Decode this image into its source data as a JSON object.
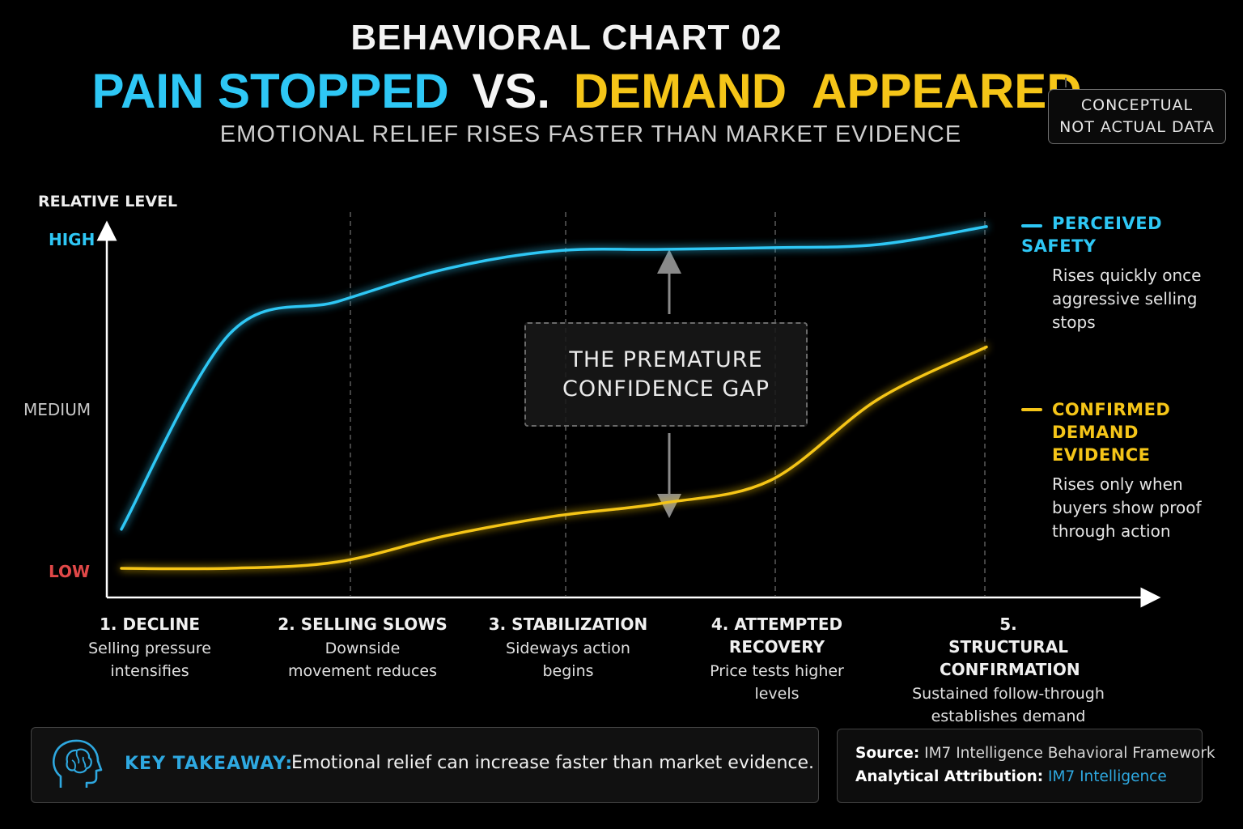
{
  "header": {
    "title": "BEHAVIORAL CHART 02",
    "headline_part1": "PAIN STOPPED",
    "headline_part2": "VS.",
    "headline_part3": "DEMAND  APPEARED",
    "subtitle": "EMOTIONAL RELIEF RISES FASTER THAN MARKET EVIDENCE",
    "badge_line1": "CONCEPTUAL",
    "badge_line2": "NOT ACTUAL DATA"
  },
  "colors": {
    "background": "#000000",
    "safety": "#2ec7f5",
    "demand": "#f5c518",
    "low": "#e04848",
    "medium": "#c8c8c8",
    "high": "#2ec7f5"
  },
  "chart_data": {
    "type": "line",
    "title": "BEHAVIORAL CHART 02",
    "ylabel": "RELATIVE LEVEL",
    "y_levels": [
      "LOW",
      "MEDIUM",
      "HIGH"
    ],
    "ylim": [
      0,
      1
    ],
    "x": [
      1,
      1.5,
      2,
      2.5,
      3,
      3.5,
      4,
      4.5,
      5
    ],
    "xlim": [
      1,
      5
    ],
    "categories": [
      {
        "label": "1. DECLINE",
        "desc": "Selling pressure intensifies"
      },
      {
        "label": "2. SELLING SLOWS",
        "desc": "Downside movement reduces"
      },
      {
        "label": "3. STABILIZATION",
        "desc": "Sideways action begins"
      },
      {
        "label": "4. ATTEMPTED RECOVERY",
        "desc": "Price tests higher levels"
      },
      {
        "label": "5. STRUCTURAL CONFIRMATION",
        "desc": "Sustained follow-through establishes demand"
      }
    ],
    "series": [
      {
        "name": "PERCEIVED SAFETY",
        "description": "Rises quickly once aggressive selling stops",
        "color": "#2ec7f5",
        "values": [
          0.12,
          0.72,
          0.82,
          0.92,
          0.975,
          0.98,
          0.985,
          0.995,
          1.05
        ]
      },
      {
        "name": "CONFIRMED DEMAND EVIDENCE",
        "description": "Rises only when buyers show proof through action",
        "color": "#f5c518",
        "values": [
          0.0,
          0.0,
          0.02,
          0.1,
          0.16,
          0.2,
          0.27,
          0.52,
          0.68
        ]
      }
    ],
    "annotation": "THE PREMATURE CONFIDENCE GAP",
    "grid": "dashed vertical lines at stages 2–5",
    "legend": "right"
  },
  "takeaway": {
    "label": "KEY TAKEAWAY:",
    "text": "Emotional relief can increase faster than market evidence."
  },
  "source": {
    "source_label": "Source:",
    "source_value": "IM7 Intelligence Behavioral Framework",
    "attr_label": "Analytical Attribution:",
    "attr_value": "IM7 Intelligence"
  }
}
